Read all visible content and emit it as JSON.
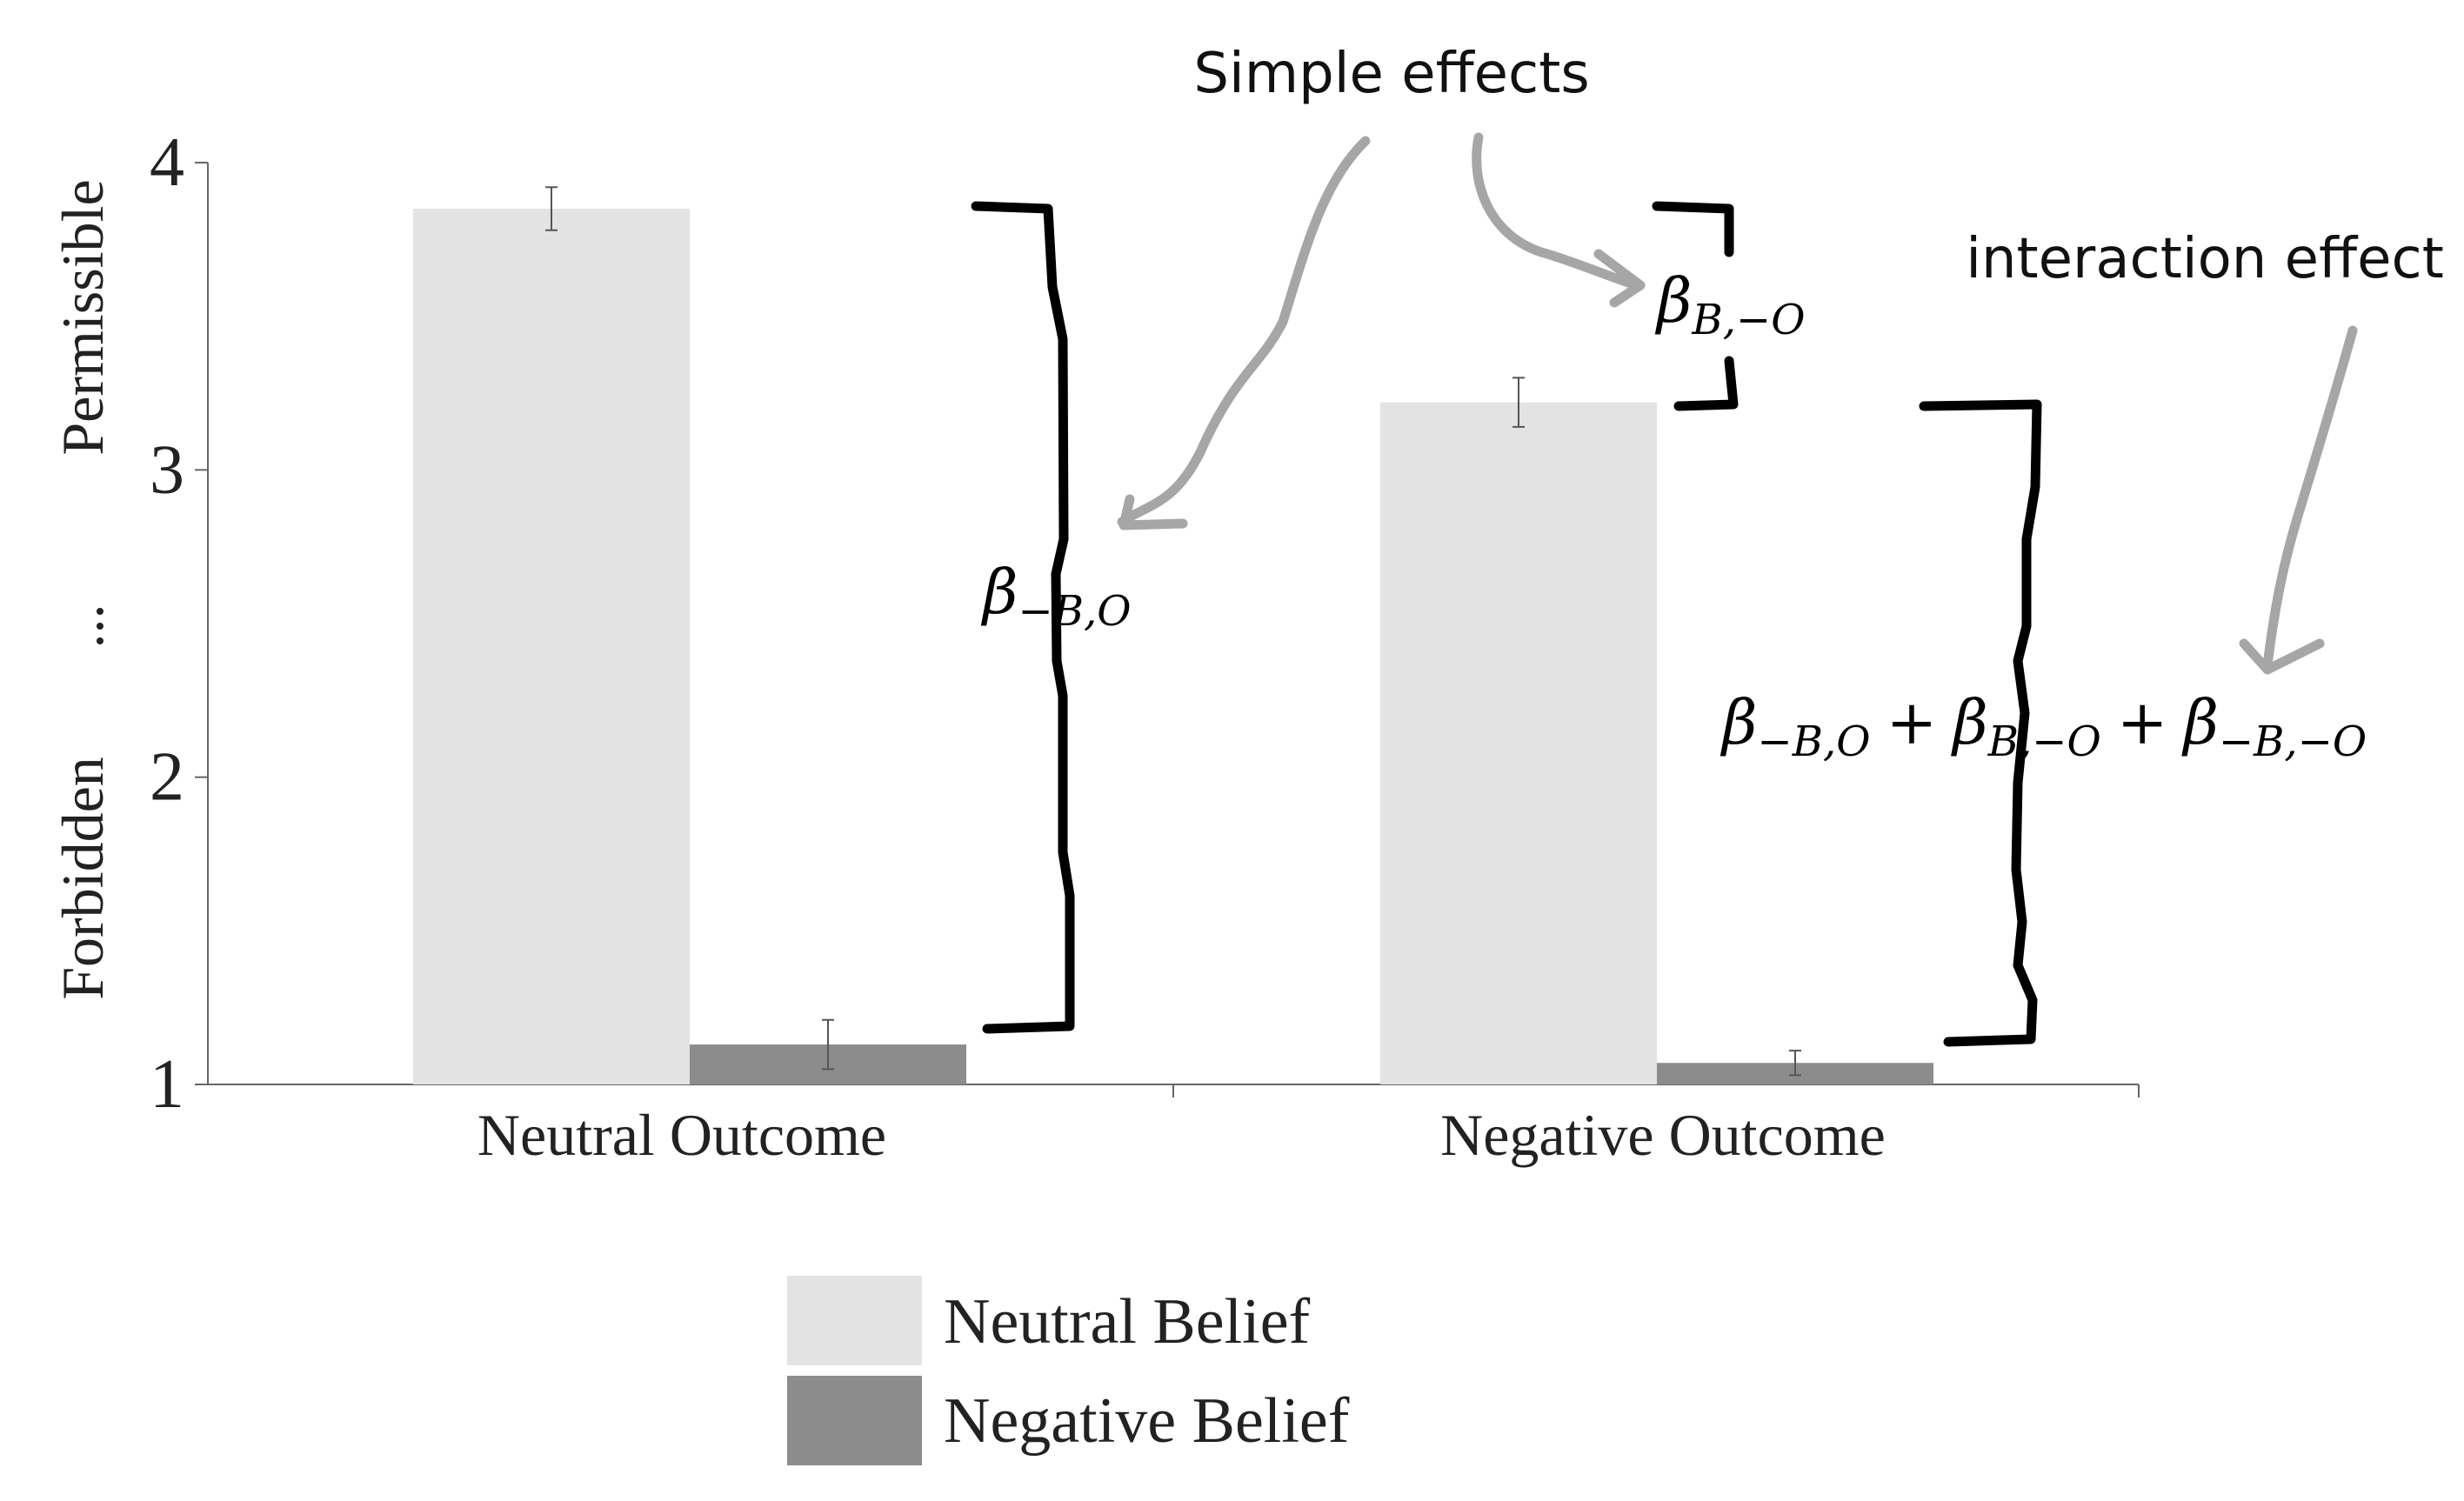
{
  "chart_data": {
    "type": "bar",
    "categories": [
      "Neutral Outcome",
      "Negative Outcome"
    ],
    "series": [
      {
        "name": "Neutral Belief",
        "values": [
          3.85,
          3.22
        ],
        "errors": [
          0.07,
          0.08
        ],
        "color": "#e3e3e3"
      },
      {
        "name": "Negative Belief",
        "values": [
          1.13,
          1.07
        ],
        "errors": [
          0.08,
          0.04
        ],
        "color": "#8c8c8c"
      }
    ],
    "ylim": [
      1,
      4
    ],
    "yticks": [
      "1",
      "2",
      "3",
      "4"
    ],
    "ylabel_upper": "Permissible",
    "ylabel_middle": "...",
    "ylabel_lower": "Forbidden",
    "legend_position": "bottom"
  },
  "annotations": {
    "simple_effects": "Simple effects",
    "interaction_effect": "interaction effect",
    "beta_neg_b_o": {
      "base": "β",
      "sub": "−B,O"
    },
    "beta_b_neg_o": {
      "base": "β",
      "sub": "B,−O"
    },
    "sum_expression": {
      "t1": {
        "base": "β",
        "sub": "−B,O"
      },
      "plus1": "+",
      "t2": {
        "base": "β",
        "sub": "B,−O"
      },
      "plus2": "+",
      "t3": {
        "base": "β",
        "sub": "−B,−O"
      }
    },
    "bracket_color": "#000000",
    "arrow_color": "#a6a6a6"
  }
}
